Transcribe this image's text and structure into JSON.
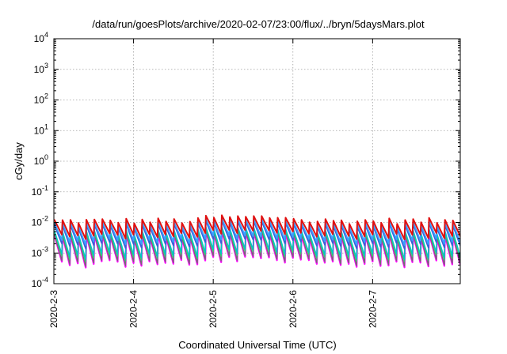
{
  "chart_data": {
    "type": "line",
    "title": "/data/run/goesPlots/archive/2020-02-07/23:00/flux/../bryn/5daysMars.plot",
    "xlabel": "Coordinated Universal Time (UTC)",
    "ylabel": "cGy/day",
    "yscale": "log",
    "ylim": [
      0.0001,
      10000
    ],
    "xlim_days": [
      0,
      5.1
    ],
    "x_ticks": [
      {
        "label": "2020-2-3",
        "value": 0
      },
      {
        "label": "2020-2-4",
        "value": 1
      },
      {
        "label": "2020-2-5",
        "value": 2
      },
      {
        "label": "2020-2-6",
        "value": 3
      },
      {
        "label": "2020-2-7",
        "value": 4
      }
    ],
    "y_ticks": [
      {
        "base": "10",
        "exp": "-4",
        "value": -4
      },
      {
        "base": "10",
        "exp": "-3",
        "value": -3
      },
      {
        "base": "10",
        "exp": "-2",
        "value": -2
      },
      {
        "base": "10",
        "exp": "-1",
        "value": -1
      },
      {
        "base": "10",
        "exp": "0",
        "value": 0
      },
      {
        "base": "10",
        "exp": "1",
        "value": 1
      },
      {
        "base": "10",
        "exp": "2",
        "value": 2
      },
      {
        "base": "10",
        "exp": "3",
        "value": 3
      },
      {
        "base": "10",
        "exp": "4",
        "value": 4
      }
    ],
    "grid": true,
    "pattern": {
      "description": "sawtooth, spikes each ~0.1 day",
      "period_days": 0.1,
      "spike_log_range": [
        -2.05,
        -1.85
      ],
      "decay_per_period_log": [
        0.75,
        0.9
      ]
    },
    "series": [
      {
        "color": "#ff00ff",
        "level": 0.0,
        "width": 2.2
      },
      {
        "color": "#707070",
        "level": 0.05,
        "width": 1.2
      },
      {
        "color": "#2fd36a",
        "level": 0.25,
        "width": 1.4
      },
      {
        "color": "#00c8c8",
        "level": 0.35,
        "width": 1.4
      },
      {
        "color": "#3a5ed8",
        "level": 0.8,
        "width": 1.8
      },
      {
        "color": "#3aa0ff",
        "level": 0.95,
        "width": 1.8
      },
      {
        "color": "#e01010",
        "level": 1.2,
        "width": 2.0
      }
    ]
  }
}
